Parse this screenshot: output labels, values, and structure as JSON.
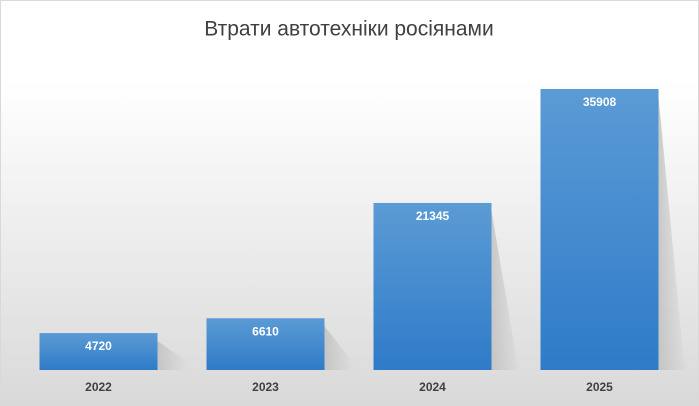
{
  "chart_data": {
    "type": "bar",
    "title": "Втрати автотехніки росіянами",
    "categories": [
      "2022",
      "2023",
      "2024",
      "2025"
    ],
    "values": [
      4720,
      6610,
      21345,
      35908
    ],
    "color": "#4a8fd4"
  }
}
